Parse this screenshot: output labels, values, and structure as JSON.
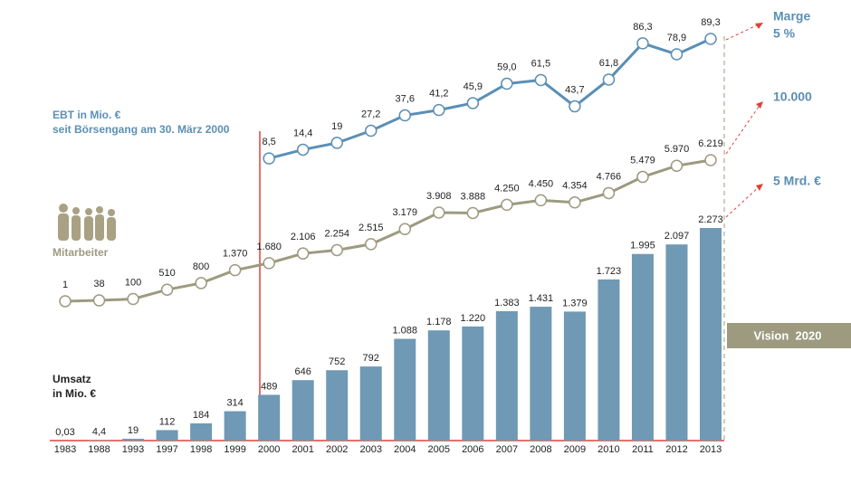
{
  "chart_data": {
    "type": "bar",
    "categories": [
      "1983",
      "1988",
      "1993",
      "1997",
      "1998",
      "1999",
      "2000",
      "2001",
      "2002",
      "2003",
      "2004",
      "2005",
      "2006",
      "2007",
      "2008",
      "2009",
      "2010",
      "2011",
      "2012",
      "2013"
    ],
    "series": [
      {
        "name": "Umsatz",
        "unit": "in Mio. €",
        "type": "bar",
        "color": "#6f99b5",
        "values": [
          0.03,
          4.4,
          19,
          112,
          184,
          314,
          489,
          646,
          752,
          792,
          1088,
          1178,
          1220,
          1383,
          1431,
          1379,
          1723,
          1995,
          2097,
          2273
        ],
        "value_labels": [
          "0,03",
          "4,4",
          "19",
          "112",
          "184",
          "314",
          "489",
          "646",
          "752",
          "792",
          "1.088",
          "1.178",
          "1.220",
          "1.383",
          "1.431",
          "1.379",
          "1.723",
          "1.995",
          "2.097",
          "2.273"
        ]
      },
      {
        "name": "Mitarbeiter",
        "type": "line",
        "color": "#9d9a80",
        "values": [
          1,
          38,
          100,
          510,
          800,
          1370,
          1680,
          2106,
          2254,
          2515,
          3179,
          3908,
          3888,
          4250,
          4450,
          4354,
          4766,
          5479,
          5970,
          6219
        ],
        "value_labels": [
          "1",
          "38",
          "100",
          "510",
          "800",
          "1.370",
          "1.680",
          "2.106",
          "2.254",
          "2.515",
          "3.179",
          "3.908",
          "3.888",
          "4.250",
          "4.450",
          "4.354",
          "4.766",
          "5.479",
          "5.970",
          "6.219"
        ]
      },
      {
        "name": "EBT in Mio. €",
        "unit": "seit Börsengang am 30. März 2000",
        "type": "line",
        "color": "#5b8fb5",
        "values": [
          null,
          null,
          null,
          null,
          null,
          null,
          8.5,
          14.4,
          19,
          27.2,
          37.6,
          41.2,
          45.9,
          59.0,
          61.5,
          43.7,
          61.8,
          86.3,
          78.9,
          89.3
        ],
        "value_labels": [
          null,
          null,
          null,
          null,
          null,
          null,
          "8,5",
          "14,4",
          "19",
          "27,2",
          "37,6",
          "41,2",
          "45,9",
          "59,0",
          "61,5",
          "43,7",
          "61,8",
          "86,3",
          "78,9",
          "89,3"
        ]
      }
    ],
    "targets": [
      {
        "label": "Marge",
        "sub": "5 %"
      },
      {
        "label": "10.000"
      },
      {
        "label": "5 Mrd. €"
      }
    ],
    "vision": "Vision  2020"
  }
}
